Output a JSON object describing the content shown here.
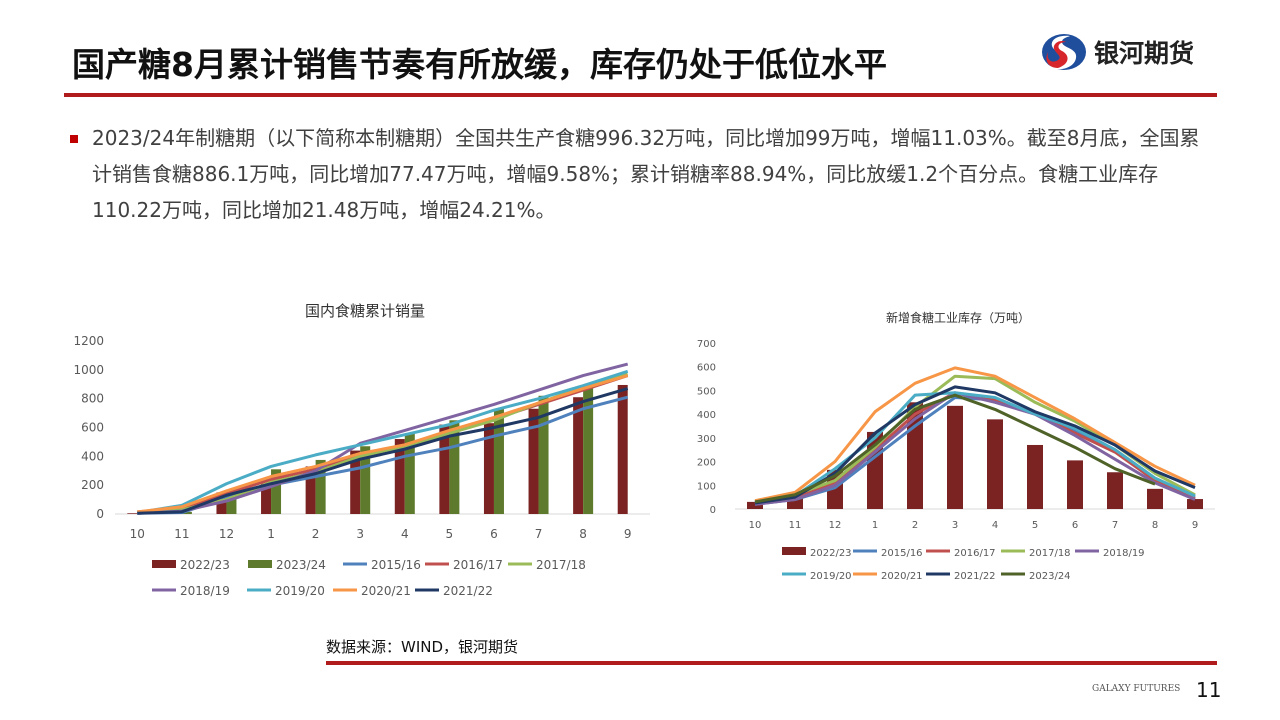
{
  "header": {
    "title": "国产糖8月累计销售节奏有所放缓，库存仍处于低位水平",
    "logo_text": "银河期货"
  },
  "body": {
    "paragraph": "2023/24年制糖期（以下简称本制糖期）全国共生产食糖996.32万吨，同比增加99万吨，增幅11.03%。截至8月底，全国累计销售食糖886.1万吨，同比增加77.47万吨，增幅9.58%；累计销糖率88.94%，同比放缓1.2个百分点。食糖工业库存110.22万吨，同比增加21.48万吨，增幅24.21%。"
  },
  "footer": {
    "source": "数据来源：WIND，银河期货",
    "brand": "GALAXY FUTURES",
    "page_number": "11"
  },
  "colors": {
    "accent": "#b01c1c",
    "2022/23": "#7b2323",
    "2023/24": "#5e7a2c",
    "2015/16": "#4f81bd",
    "2016/17": "#c0504d",
    "2017/18": "#9bbb59",
    "2018/19": "#8064a2",
    "2019/20": "#4bacc6",
    "2020/21": "#f79646",
    "2021/22": "#1f3864",
    "2023/24_line": "#4f6228"
  },
  "chart_data": [
    {
      "type": "bar+line",
      "title": "国内食糖累计销量",
      "ylim": [
        0,
        1200
      ],
      "yticks": [
        "0",
        "200",
        "400",
        "600",
        "800",
        "1000",
        "1200"
      ],
      "categories": [
        "10",
        "11",
        "12",
        "1",
        "2",
        "3",
        "4",
        "5",
        "6",
        "7",
        "8",
        "9"
      ],
      "bars": [
        {
          "name": "2022/23",
          "values": [
            5,
            10,
            150,
            210,
            330,
            440,
            520,
            620,
            630,
            730,
            810,
            895
          ]
        },
        {
          "name": "2023/24",
          "values": [
            5,
            15,
            160,
            310,
            375,
            470,
            560,
            650,
            730,
            820,
            886,
            null
          ]
        }
      ],
      "lines": [
        {
          "name": "2015/16",
          "values": [
            5,
            10,
            110,
            200,
            260,
            320,
            400,
            460,
            540,
            610,
            730,
            810
          ]
        },
        {
          "name": "2016/17",
          "values": [
            15,
            40,
            140,
            240,
            310,
            410,
            480,
            570,
            660,
            760,
            860,
            960
          ]
        },
        {
          "name": "2017/18",
          "values": [
            10,
            30,
            100,
            220,
            290,
            400,
            470,
            560,
            650,
            770,
            880,
            970
          ]
        },
        {
          "name": "2018/19",
          "values": [
            5,
            20,
            90,
            190,
            300,
            490,
            580,
            670,
            760,
            860,
            960,
            1040
          ]
        },
        {
          "name": "2019/20",
          "values": [
            10,
            60,
            210,
            330,
            410,
            480,
            550,
            620,
            720,
            800,
            890,
            990
          ]
        },
        {
          "name": "2020/21",
          "values": [
            15,
            50,
            160,
            260,
            330,
            420,
            480,
            580,
            670,
            770,
            870,
            960
          ]
        },
        {
          "name": "2021/22",
          "values": [
            5,
            15,
            130,
            210,
            280,
            380,
            450,
            540,
            600,
            670,
            780,
            870
          ]
        }
      ],
      "legend": [
        "2022/23",
        "2023/24",
        "2015/16",
        "2016/17",
        "2017/18",
        "2018/19",
        "2019/20",
        "2020/21",
        "2021/22"
      ],
      "legend_position": "bottom"
    },
    {
      "type": "bar+line",
      "title": "新增食糖工业库存（万吨）",
      "ylim": [
        0,
        700
      ],
      "yticks": [
        "0",
        "100",
        "200",
        "300",
        "400",
        "500",
        "600",
        "700"
      ],
      "categories": [
        "10",
        "11",
        "12",
        "1",
        "2",
        "3",
        "4",
        "5",
        "6",
        "7",
        "8",
        "9"
      ],
      "bars": [
        {
          "name": "2022/23",
          "values": [
            30,
            45,
            165,
            325,
            450,
            435,
            378,
            270,
            205,
            155,
            85,
            42
          ]
        }
      ],
      "lines": [
        {
          "name": "2015/16",
          "values": [
            20,
            40,
            90,
            220,
            350,
            470,
            460,
            400,
            330,
            250,
            130,
            50
          ]
        },
        {
          "name": "2016/17",
          "values": [
            25,
            50,
            110,
            250,
            400,
            490,
            460,
            400,
            320,
            240,
            120,
            45
          ]
        },
        {
          "name": "2017/18",
          "values": [
            30,
            60,
            120,
            260,
            430,
            560,
            550,
            450,
            370,
            270,
            150,
            60
          ]
        },
        {
          "name": "2018/19",
          "values": [
            20,
            40,
            100,
            240,
            380,
            490,
            450,
            400,
            310,
            210,
            110,
            40
          ]
        },
        {
          "name": "2019/20",
          "values": [
            25,
            55,
            170,
            300,
            480,
            490,
            470,
            400,
            340,
            250,
            130,
            55
          ]
        },
        {
          "name": "2020/21",
          "values": [
            35,
            70,
            200,
            410,
            530,
            595,
            560,
            470,
            380,
            280,
            180,
            100
          ]
        },
        {
          "name": "2021/22",
          "values": [
            25,
            50,
            150,
            320,
            440,
            515,
            490,
            410,
            350,
            270,
            160,
            90
          ]
        },
        {
          "name": "2023/24",
          "values": [
            30,
            60,
            140,
            270,
            420,
            480,
            420,
            340,
            260,
            170,
            105,
            null
          ]
        }
      ],
      "legend": [
        "2022/23",
        "2015/16",
        "2016/17",
        "2017/18",
        "2018/19",
        "2019/20",
        "2020/21",
        "2021/22",
        "2023/24"
      ],
      "legend_position": "bottom"
    }
  ]
}
